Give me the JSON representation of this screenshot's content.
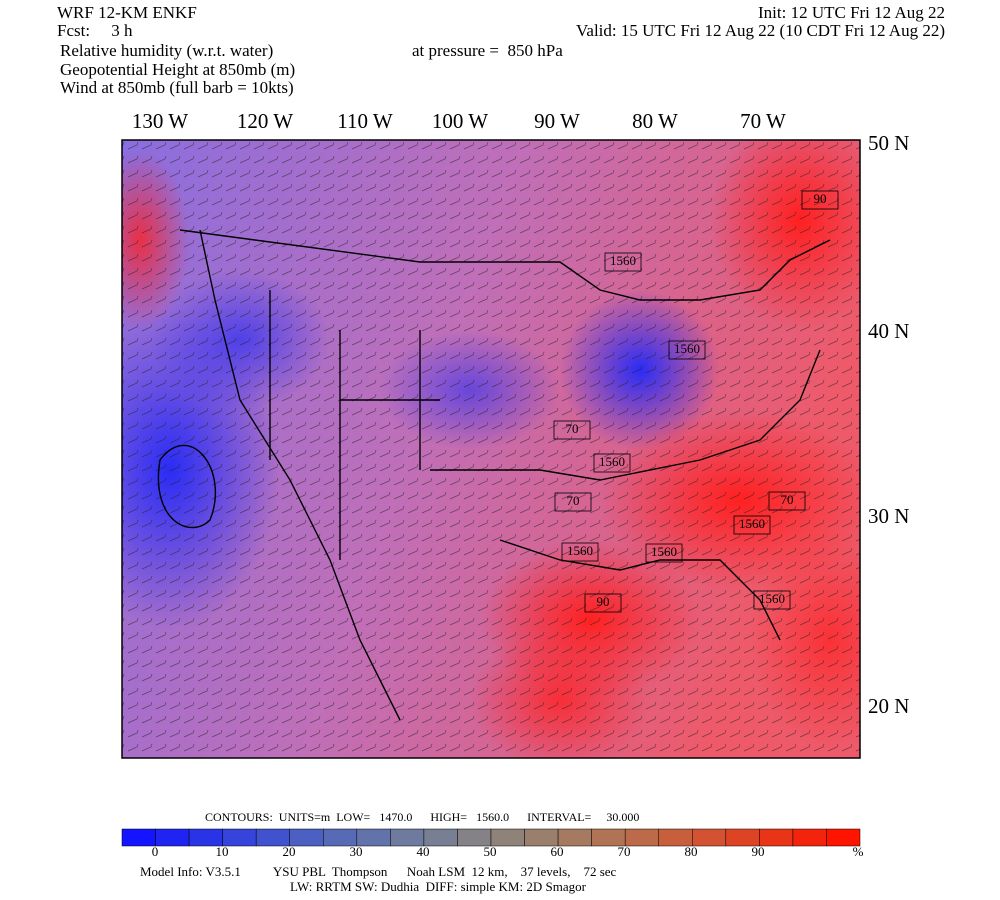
{
  "header": {
    "left": [
      "WRF 12-KM ENKF",
      "Fcst:     3 h",
      "Relative humidity (w.r.t. water)",
      "Geopotential Height at 850mb (m)",
      "Wind at 850mb (full barb = 10kts)"
    ],
    "right": [
      "Init: 12 UTC Fri 12 Aug 22",
      "Valid: 15 UTC Fri 12 Aug 22 (10 CDT Fri 12 Aug 22)",
      "at pressure =  850 hPa"
    ]
  },
  "map": {
    "longitudes": [
      "130 W",
      "120 W",
      "110 W",
      "100 W",
      "90 W",
      "80 W",
      "70 W"
    ],
    "latitudes": [
      "50 N",
      "40 N",
      "30 N",
      "20 N"
    ],
    "contour_labels": [
      "1560",
      "1560",
      "1560",
      "1560",
      "1560",
      "1560",
      "1560",
      "70",
      "70",
      "70",
      "90",
      "90"
    ]
  },
  "contours_info": "CONTOURS:  UNITS=m  LOW=   1470.0      HIGH=   1560.0      INTERVAL=     30.000",
  "colorbar": {
    "labels": [
      0,
      10,
      20,
      30,
      40,
      50,
      60,
      70,
      80,
      90
    ],
    "unit": "%"
  },
  "footer": [
    "Model Info: V3.5.1          YSU PBL  Thompson      Noah LSM  12 km,    37 levels,    72 sec",
    "LW: RRTM SW: Dudhia  DIFF: simple KM: 2D Smagor"
  ]
}
